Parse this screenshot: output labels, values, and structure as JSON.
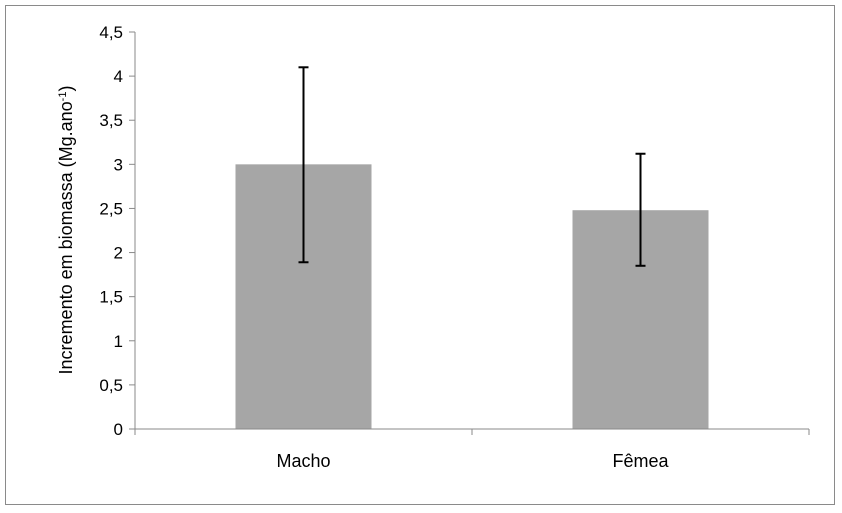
{
  "chart_data": {
    "type": "bar",
    "title": "",
    "xlabel": "",
    "ylabel": "Incremento em biomassa (Mg.ano",
    "ylabel_superscript": "-1",
    "ylabel_close": ")",
    "categories": [
      "Macho",
      "Fêmea"
    ],
    "values": [
      3.0,
      2.48
    ],
    "error_low": [
      1.89,
      1.85
    ],
    "error_high": [
      4.1,
      3.12
    ],
    "ylim": [
      0,
      4.5
    ],
    "yticks": [
      0,
      0.5,
      1,
      1.5,
      2,
      2.5,
      3,
      3.5,
      4,
      4.5
    ],
    "ytick_labels": [
      "0",
      "0,5",
      "1",
      "1,5",
      "2",
      "2,5",
      "3",
      "3,5",
      "4",
      "4,5"
    ],
    "grid": false,
    "legend": "none",
    "bar_color": "#a6a6a6",
    "error_color": "#000000"
  }
}
